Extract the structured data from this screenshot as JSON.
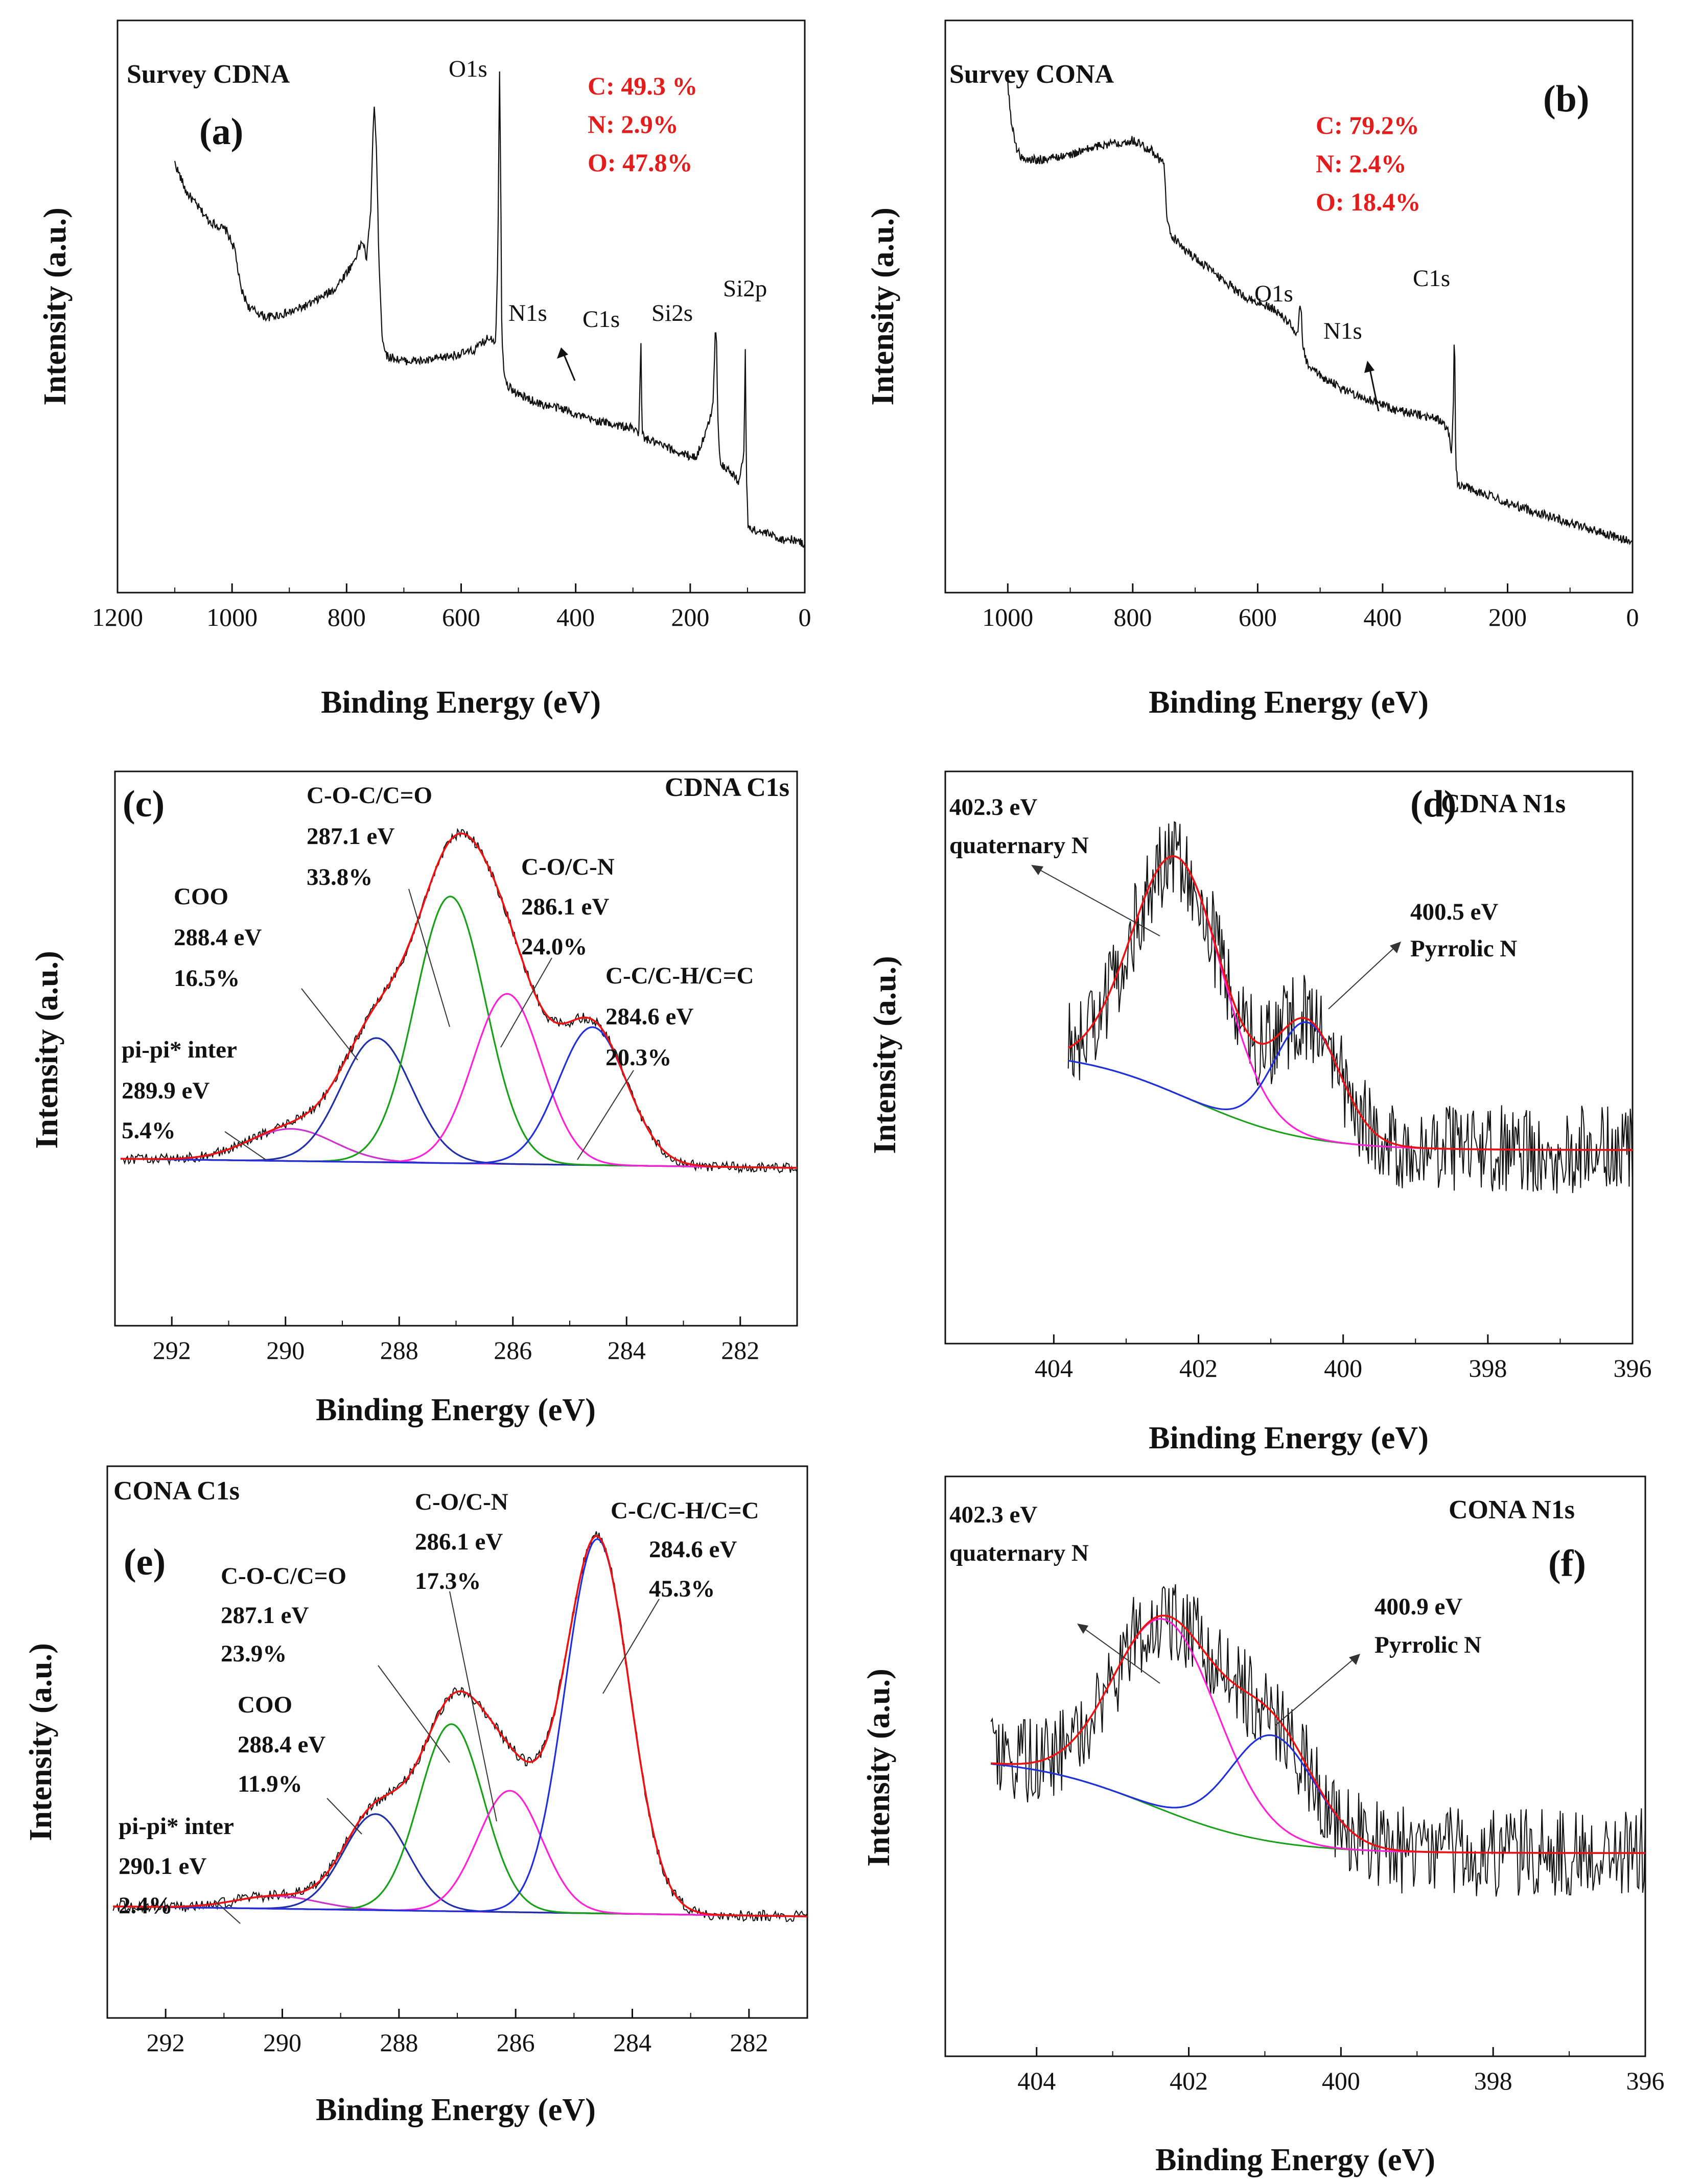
{
  "chart_data": [
    {
      "id": "a",
      "type": "line",
      "panel_label": "(a)",
      "title": "Survey CDNA",
      "xlabel": "Binding Energy (eV)",
      "ylabel": "Intensity (a.u.)",
      "xlim": [
        1200,
        0
      ],
      "ylim": [
        0,
        1
      ],
      "xticks": [
        1200,
        1000,
        800,
        600,
        400,
        200,
        0
      ],
      "xtick_labels": [
        "1200",
        "1000",
        "800",
        "600",
        "400",
        "200",
        "0"
      ],
      "composition": [
        "C: 49.3 %",
        "N: 2.9%",
        "O: 47.8%"
      ],
      "peaks": [
        {
          "label": "O1s",
          "x": 531
        },
        {
          "label": "N1s",
          "x": 400
        },
        {
          "label": "C1s",
          "x": 285
        },
        {
          "label": "Si2s",
          "x": 154
        },
        {
          "label": "Si2p",
          "x": 103
        }
      ],
      "series": [
        {
          "name": "survey",
          "color": "#111111",
          "x": [
            1100,
            1080,
            1060,
            1040,
            1010,
            995,
            985,
            970,
            940,
            900,
            860,
            820,
            790,
            772,
            765,
            758,
            752,
            748,
            744,
            738,
            730,
            700,
            660,
            620,
            580,
            550,
            540,
            536,
            533,
            531,
            529,
            526,
            520,
            500,
            460,
            420,
            400,
            380,
            340,
            300,
            290,
            286,
            284,
            280,
            260,
            220,
            190,
            170,
            160,
            156,
            154,
            152,
            148,
            130,
            115,
            106,
            104,
            102,
            99,
            90,
            60,
            40,
            20,
            0
          ],
          "y": [
            0.8,
            0.74,
            0.71,
            0.68,
            0.66,
            0.62,
            0.54,
            0.5,
            0.48,
            0.49,
            0.51,
            0.54,
            0.59,
            0.64,
            0.6,
            0.7,
            0.93,
            0.83,
            0.62,
            0.44,
            0.4,
            0.39,
            0.39,
            0.4,
            0.41,
            0.44,
            0.43,
            0.6,
            1.0,
            0.78,
            0.45,
            0.38,
            0.34,
            0.32,
            0.3,
            0.29,
            0.28,
            0.27,
            0.26,
            0.25,
            0.24,
            0.42,
            0.24,
            0.23,
            0.22,
            0.2,
            0.19,
            0.25,
            0.3,
            0.47,
            0.43,
            0.28,
            0.18,
            0.16,
            0.14,
            0.2,
            0.43,
            0.16,
            0.05,
            0.04,
            0.03,
            0.02,
            0.02,
            0.01
          ]
        }
      ]
    },
    {
      "id": "b",
      "type": "line",
      "panel_label": "(b)",
      "title": "Survey CONA",
      "xlabel": "Binding Energy (eV)",
      "ylabel": "Intensity (a.u.)",
      "xlim": [
        1100,
        0
      ],
      "ylim": [
        0,
        1
      ],
      "xticks": [
        1000,
        800,
        600,
        400,
        200,
        0
      ],
      "xtick_labels": [
        "1000",
        "800",
        "600",
        "400",
        "200",
        "0"
      ],
      "composition": [
        "C: 79.2%",
        "N: 2.4%",
        "O: 18.4%"
      ],
      "peaks": [
        {
          "label": "O1s",
          "x": 531
        },
        {
          "label": "N1s",
          "x": 400
        },
        {
          "label": "C1s",
          "x": 285
        }
      ],
      "series": [
        {
          "name": "survey",
          "color": "#111111",
          "x": [
            1000,
            995,
            985,
            975,
            950,
            900,
            850,
            800,
            770,
            750,
            745,
            740,
            720,
            700,
            660,
            620,
            580,
            560,
            545,
            536,
            532,
            530,
            528,
            520,
            500,
            460,
            420,
            400,
            380,
            340,
            310,
            295,
            290,
            287,
            285,
            283,
            280,
            260,
            200,
            150,
            100,
            50,
            0
          ],
          "y": [
            0.98,
            0.9,
            0.84,
            0.82,
            0.82,
            0.83,
            0.85,
            0.86,
            0.84,
            0.81,
            0.7,
            0.67,
            0.64,
            0.62,
            0.58,
            0.54,
            0.52,
            0.5,
            0.48,
            0.46,
            0.53,
            0.5,
            0.44,
            0.4,
            0.38,
            0.35,
            0.33,
            0.32,
            0.31,
            0.3,
            0.29,
            0.27,
            0.22,
            0.3,
            0.5,
            0.2,
            0.16,
            0.15,
            0.12,
            0.1,
            0.08,
            0.06,
            0.04
          ]
        }
      ]
    },
    {
      "id": "c",
      "type": "line",
      "panel_label": "(c)",
      "title": "CDNA C1s",
      "xlabel": "Binding Energy (eV)",
      "ylabel": "Intensity (a.u.)",
      "xlim": [
        293,
        281
      ],
      "ylim": [
        0,
        1
      ],
      "xticks": [
        292,
        290,
        288,
        286,
        284,
        282
      ],
      "xtick_labels": [
        "292",
        "290",
        "288",
        "286",
        "284",
        "282"
      ],
      "baseline": [
        0.18,
        0.16
      ],
      "components": [
        {
          "name": "pi-pi* inter",
          "center": 289.9,
          "amp": 0.07,
          "sigma": 0.75,
          "color": "#cc33cc"
        },
        {
          "name": "COO",
          "center": 288.4,
          "amp": 0.27,
          "sigma": 0.62,
          "color": "#1f2fa8"
        },
        {
          "name": "C-O-C/C=O",
          "center": 287.1,
          "amp": 0.58,
          "sigma": 0.62,
          "color": "#17a017"
        },
        {
          "name": "C-O/C-N",
          "center": 286.1,
          "amp": 0.37,
          "sigma": 0.6,
          "color": "#ff1fd9"
        },
        {
          "name": "C-C/C-H/C=C",
          "center": 284.6,
          "amp": 0.3,
          "sigma": 0.6,
          "color": "#1f2fd9"
        }
      ],
      "annotations": [
        {
          "lines": [
            "COO",
            "288.4 eV",
            "16.5%"
          ]
        },
        {
          "lines": [
            "C-O-C/C=O",
            "287.1 eV",
            "33.8%"
          ]
        },
        {
          "lines": [
            "C-O/C-N",
            "286.1 eV",
            "24.0%"
          ]
        },
        {
          "lines": [
            "C-C/C-H/C=C",
            "284.6 eV",
            "20.3%"
          ]
        },
        {
          "lines": [
            "pi-pi* inter",
            "289.9 eV",
            "5.4%"
          ]
        }
      ]
    },
    {
      "id": "d",
      "type": "line",
      "panel_label": "(d)",
      "title": "CDNA N1s",
      "xlabel": "Binding Energy (eV)",
      "ylabel": "Intensity (a.u.)",
      "xlim": [
        405.5,
        396
      ],
      "ylim": [
        0,
        1
      ],
      "xticks": [
        404,
        402,
        400,
        398,
        396
      ],
      "xtick_labels": [
        "404",
        "402",
        "400",
        "398",
        "396"
      ],
      "baseline_shirley": {
        "high_x": 403.8,
        "high_y": 0.49,
        "low_y": 0.3
      },
      "components": [
        {
          "name": "quaternary N",
          "center": 402.3,
          "amp": 0.45,
          "sigma": 0.62,
          "color": "#ff1fd9"
        },
        {
          "name": "Pyrrolic N",
          "center": 400.5,
          "amp": 0.22,
          "sigma": 0.45,
          "color": "#1f2fd9"
        }
      ],
      "annotations": [
        {
          "lines": [
            "402.3 eV",
            "quaternary N"
          ]
        },
        {
          "lines": [
            "400.5 eV",
            "Pyrrolic N"
          ]
        }
      ]
    },
    {
      "id": "e",
      "type": "line",
      "panel_label": "(e)",
      "title": "CONA C1s",
      "xlabel": "Binding Energy (eV)",
      "ylabel": "Intensity (a.u.)",
      "xlim": [
        293,
        281
      ],
      "ylim": [
        0,
        1
      ],
      "xticks": [
        292,
        290,
        288,
        286,
        284,
        282
      ],
      "xtick_labels": [
        "292",
        "290",
        "288",
        "286",
        "284",
        "282"
      ],
      "baseline": [
        0.14,
        0.12
      ],
      "components": [
        {
          "name": "pi-pi* inter",
          "center": 290.1,
          "amp": 0.025,
          "sigma": 0.7,
          "color": "#cc33cc"
        },
        {
          "name": "COO",
          "center": 288.4,
          "amp": 0.19,
          "sigma": 0.55,
          "color": "#1f2fa8"
        },
        {
          "name": "C-O-C/C=O",
          "center": 287.1,
          "amp": 0.37,
          "sigma": 0.55,
          "color": "#17a017"
        },
        {
          "name": "C-O/C-N",
          "center": 286.1,
          "amp": 0.24,
          "sigma": 0.55,
          "color": "#ff1fd9"
        },
        {
          "name": "C-C/C-H/C=C",
          "center": 284.6,
          "amp": 0.74,
          "sigma": 0.55,
          "color": "#1f2fd9"
        }
      ],
      "annotations": [
        {
          "lines": [
            "C-O-C/C=O",
            "287.1 eV",
            "23.9%"
          ]
        },
        {
          "lines": [
            "C-O/C-N",
            "286.1 eV",
            "17.3%"
          ]
        },
        {
          "lines": [
            "C-C/C-H/C=C",
            "284.6 eV",
            "45.3%"
          ]
        },
        {
          "lines": [
            "COO",
            "288.4 eV",
            "11.9%"
          ]
        },
        {
          "lines": [
            "pi-pi* inter",
            "290.1 eV",
            "2.4%"
          ]
        }
      ]
    },
    {
      "id": "f",
      "type": "line",
      "panel_label": "(f)",
      "title": "CONA N1s",
      "xlabel": "Binding Energy (eV)",
      "ylabel": "Intensity (a.u.)",
      "xlim": [
        405.2,
        396
      ],
      "ylim": [
        0,
        1
      ],
      "xticks": [
        404,
        402,
        400,
        398,
        396
      ],
      "xtick_labels": [
        "404",
        "402",
        "400",
        "398",
        "396"
      ],
      "baseline_shirley": {
        "high_x": 404.6,
        "high_y": 0.5,
        "low_y": 0.32
      },
      "components": [
        {
          "name": "quaternary N",
          "center": 402.3,
          "amp": 0.36,
          "sigma": 0.68,
          "color": "#ff1fd9"
        },
        {
          "name": "Pyrrolic N",
          "center": 400.9,
          "amp": 0.2,
          "sigma": 0.55,
          "color": "#1f2fd9"
        }
      ],
      "annotations": [
        {
          "lines": [
            "402.3 eV",
            "quaternary N"
          ]
        },
        {
          "lines": [
            "400.9 eV",
            "Pyrrolic N"
          ]
        }
      ]
    }
  ]
}
